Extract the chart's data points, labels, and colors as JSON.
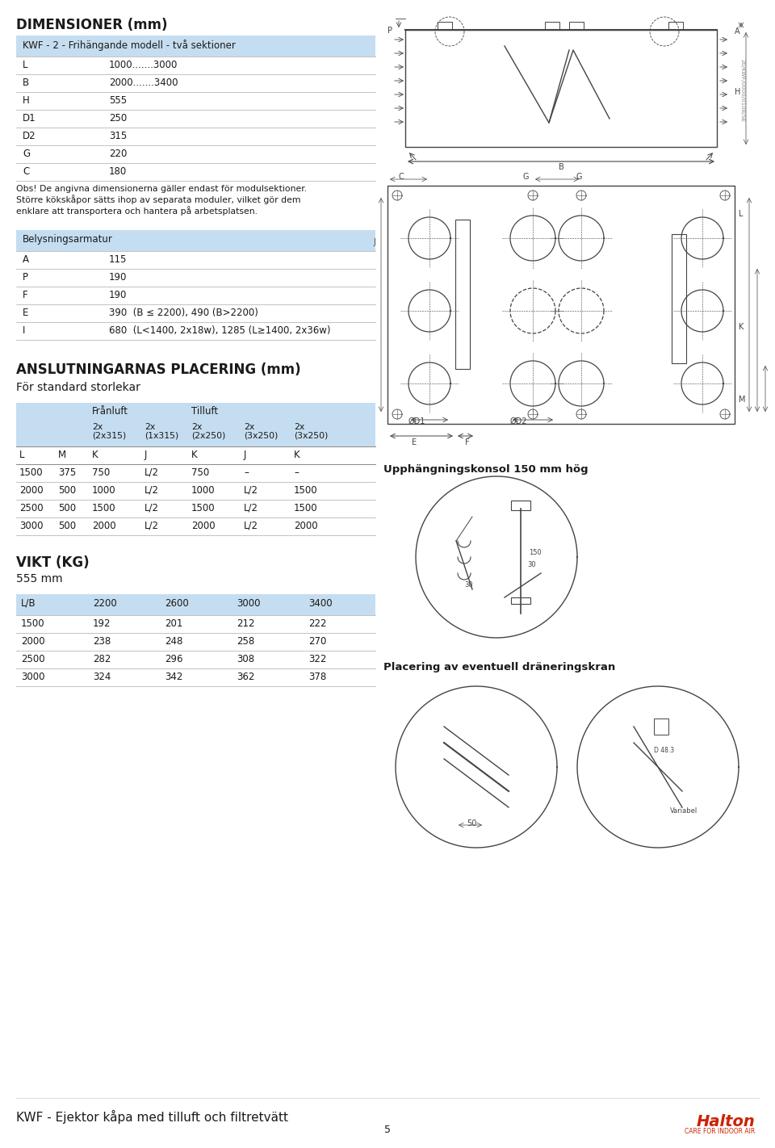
{
  "bg_color": "#ffffff",
  "light_blue": "#c5ddf0",
  "title1": "DIMENSIONER (mm)",
  "subtitle1": "KWF - 2 - Frihängande modell - två sektioner",
  "dim_rows": [
    [
      "L",
      "1000.......3000"
    ],
    [
      "B",
      "2000.......3400"
    ],
    [
      "H",
      "555"
    ],
    [
      "D1",
      "250"
    ],
    [
      "D2",
      "315"
    ],
    [
      "G",
      "220"
    ],
    [
      "C",
      "180"
    ]
  ],
  "obs_text": "Obs! De angivna dimensionerna gäller endast för modulsektioner.\nStörre kökskåpor sätts ihop av separata moduler, vilket gör dem\nenklare att transportera och hantera på arbetsplatsen.",
  "bely_header": "Belysningsarmatur",
  "bely_rows": [
    [
      "A",
      "115"
    ],
    [
      "P",
      "190"
    ],
    [
      "F",
      "190"
    ],
    [
      "E",
      "390  (B ≤ 2200), 490 (B>2200)"
    ],
    [
      "I",
      "680  (L<1400, 2x18w), 1285 (L≥1400, 2x36w)"
    ]
  ],
  "title2": "ANSLUTNINGARNAS PLACERING (mm)",
  "subtitle2": "För standard storlekar",
  "ansl_col_header": [
    "L",
    "M",
    "K",
    "J",
    "K",
    "J",
    "K"
  ],
  "ansl_data": [
    [
      "1500",
      "375",
      "750",
      "L/2",
      "750",
      "–",
      "–"
    ],
    [
      "2000",
      "500",
      "1000",
      "L/2",
      "1000",
      "L/2",
      "1500"
    ],
    [
      "2500",
      "500",
      "1500",
      "L/2",
      "1500",
      "L/2",
      "1500"
    ],
    [
      "3000",
      "500",
      "2000",
      "L/2",
      "2000",
      "L/2",
      "2000"
    ]
  ],
  "title3": "VIKT (KG)",
  "subtitle3": "555 mm",
  "vikt_header": [
    "L/B",
    "2200",
    "2600",
    "3000",
    "3400"
  ],
  "vikt_data": [
    [
      "1500",
      "192",
      "201",
      "212",
      "222"
    ],
    [
      "2000",
      "238",
      "248",
      "258",
      "270"
    ],
    [
      "2500",
      "282",
      "296",
      "308",
      "322"
    ],
    [
      "3000",
      "324",
      "342",
      "362",
      "378"
    ]
  ],
  "footer_text": "KWF - Ejektor kåpa med tilluft och filtretvätt",
  "page_num": "5",
  "upphangning_text": "Upphängningskonsol 150 mm hög",
  "placering_text": "Placering av eventuell dräneringskran"
}
